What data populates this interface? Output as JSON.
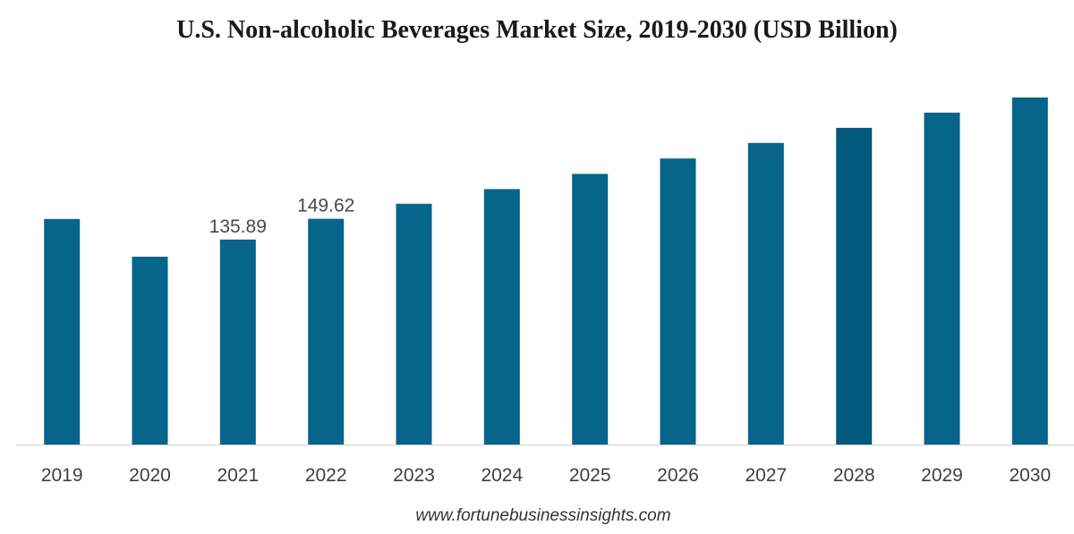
{
  "title": "U.S. Non-alcoholic Beverages Market Size, 2019-2030 (USD Billion)",
  "source": "www.fortunebusinessinsights.com",
  "colors": {
    "bar": "#07648a",
    "bar_highlight": "#015a7d",
    "axis": "#d0d0d0",
    "tick_text": "#404040",
    "label_text": "#4a4a4a"
  },
  "chart_data": {
    "type": "bar",
    "categories": [
      "2019",
      "2020",
      "2021",
      "2022",
      "2023",
      "2024",
      "2025",
      "2026",
      "2027",
      "2028",
      "2029",
      "2030"
    ],
    "values": [
      149.5,
      124.5,
      135.89,
      149.62,
      159.6,
      169.3,
      179.4,
      189.6,
      199.9,
      209.9,
      220.0,
      230.0
    ],
    "data_labels": [
      "",
      "",
      "135.89",
      "149.62",
      "",
      "",
      "",
      "",
      "",
      "",
      "",
      ""
    ],
    "highlight_index": 9,
    "title": "U.S. Non-alcoholic Beverages Market Size, 2019-2030 (USD Billion)",
    "xlabel": "",
    "ylabel": "",
    "ylim": [
      0,
      240
    ],
    "grid": false,
    "legend": "none"
  }
}
